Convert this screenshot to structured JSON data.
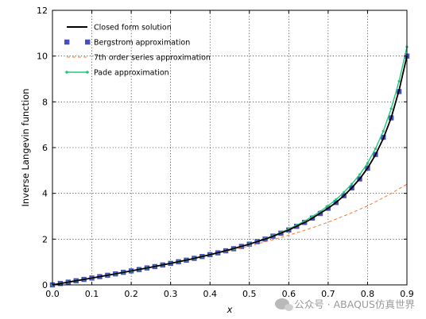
{
  "chart_data": {
    "type": "line",
    "title": "",
    "xlabel": "x",
    "ylabel": "Inverse Langevin function",
    "xlim": [
      0.0,
      0.9
    ],
    "ylim": [
      0,
      12
    ],
    "xticks": [
      "0.0",
      "0.1",
      "0.2",
      "0.3",
      "0.4",
      "0.5",
      "0.6",
      "0.7",
      "0.8",
      "0.9"
    ],
    "yticks": [
      "0",
      "2",
      "4",
      "6",
      "8",
      "10",
      "12"
    ],
    "grid": true,
    "legend_position": "top-left",
    "series": [
      {
        "name": "Closed form solution",
        "style": "line",
        "color": "#000000",
        "x": [
          0.0,
          0.05,
          0.1,
          0.15,
          0.2,
          0.25,
          0.3,
          0.35,
          0.4,
          0.45,
          0.5,
          0.55,
          0.6,
          0.65,
          0.7,
          0.72,
          0.74,
          0.76,
          0.78,
          0.8,
          0.82,
          0.84,
          0.86,
          0.88,
          0.9
        ],
        "y": [
          0.0,
          0.15,
          0.3,
          0.45,
          0.61,
          0.77,
          0.94,
          1.12,
          1.32,
          1.54,
          1.78,
          2.06,
          2.4,
          2.81,
          3.35,
          3.6,
          3.9,
          4.24,
          4.63,
          5.1,
          5.68,
          6.4,
          7.3,
          8.5,
          10.0
        ]
      },
      {
        "name": "Bergstrom approximation",
        "style": "square-markers",
        "color": "#4a4fc0",
        "x": [
          0.0,
          0.02,
          0.04,
          0.06,
          0.08,
          0.1,
          0.12,
          0.14,
          0.16,
          0.18,
          0.2,
          0.22,
          0.24,
          0.26,
          0.28,
          0.3,
          0.32,
          0.34,
          0.36,
          0.38,
          0.4,
          0.42,
          0.44,
          0.46,
          0.48,
          0.5,
          0.52,
          0.54,
          0.56,
          0.58,
          0.6,
          0.62,
          0.64,
          0.66,
          0.68,
          0.7,
          0.72,
          0.74,
          0.76,
          0.78,
          0.8,
          0.82,
          0.84,
          0.86,
          0.88,
          0.9
        ],
        "y": [
          0.0,
          0.06,
          0.12,
          0.18,
          0.24,
          0.3,
          0.36,
          0.42,
          0.48,
          0.55,
          0.61,
          0.67,
          0.74,
          0.8,
          0.87,
          0.94,
          1.01,
          1.08,
          1.16,
          1.24,
          1.32,
          1.4,
          1.49,
          1.58,
          1.68,
          1.78,
          1.89,
          2.0,
          2.13,
          2.26,
          2.4,
          2.56,
          2.73,
          2.92,
          3.12,
          3.35,
          3.6,
          3.9,
          4.24,
          4.63,
          5.1,
          5.7,
          6.45,
          7.3,
          8.45,
          10.0
        ]
      },
      {
        "name": "7th order series approximation",
        "style": "dashed-line",
        "color": "#f07a3a",
        "x": [
          0.0,
          0.1,
          0.2,
          0.3,
          0.4,
          0.5,
          0.55,
          0.6,
          0.65,
          0.7,
          0.75,
          0.8,
          0.85,
          0.9
        ],
        "y": [
          0.0,
          0.3,
          0.61,
          0.94,
          1.3,
          1.7,
          1.93,
          2.17,
          2.44,
          2.74,
          3.08,
          3.45,
          3.9,
          4.4
        ]
      },
      {
        "name": "Pade approximation",
        "style": "line-dot-markers",
        "color": "#22c87a",
        "x": [
          0.0,
          0.02,
          0.04,
          0.06,
          0.08,
          0.1,
          0.12,
          0.14,
          0.16,
          0.18,
          0.2,
          0.22,
          0.24,
          0.26,
          0.28,
          0.3,
          0.32,
          0.34,
          0.36,
          0.38,
          0.4,
          0.42,
          0.44,
          0.46,
          0.48,
          0.5,
          0.52,
          0.54,
          0.56,
          0.58,
          0.6,
          0.62,
          0.64,
          0.66,
          0.68,
          0.7,
          0.72,
          0.74,
          0.76,
          0.78,
          0.8,
          0.82,
          0.84,
          0.86,
          0.88,
          0.9
        ],
        "y": [
          0.0,
          0.06,
          0.12,
          0.18,
          0.24,
          0.3,
          0.36,
          0.42,
          0.48,
          0.55,
          0.61,
          0.67,
          0.74,
          0.8,
          0.87,
          0.94,
          1.01,
          1.08,
          1.16,
          1.24,
          1.32,
          1.4,
          1.49,
          1.58,
          1.68,
          1.79,
          1.9,
          2.02,
          2.15,
          2.29,
          2.44,
          2.61,
          2.79,
          2.99,
          3.21,
          3.46,
          3.73,
          4.05,
          4.41,
          4.82,
          5.32,
          5.95,
          6.72,
          7.7,
          8.9,
          10.4
        ]
      }
    ]
  },
  "watermark": {
    "text": "公众号 · ABAQUS仿真世界",
    "icon": "wechat-icon"
  }
}
